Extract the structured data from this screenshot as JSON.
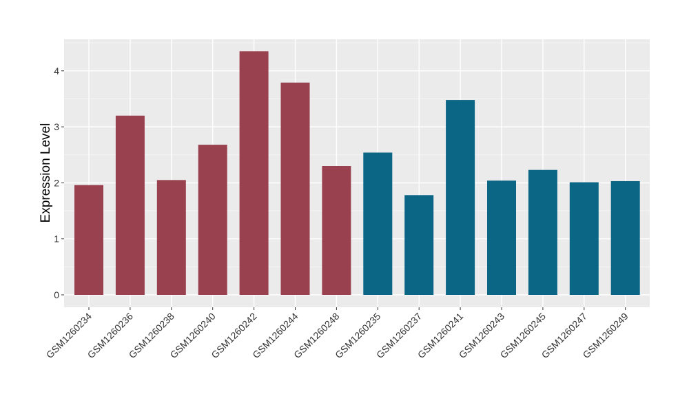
{
  "chart_data": {
    "type": "bar",
    "title": "",
    "xlabel": "",
    "ylabel": "Expression Level",
    "ylim": [
      0,
      4.5
    ],
    "yticks": [
      0,
      1,
      2,
      3,
      4
    ],
    "grid": true,
    "legend": "none",
    "categories": [
      "GSM1260234",
      "GSM1260236",
      "GSM1260238",
      "GSM1260240",
      "GSM1260242",
      "GSM1260244",
      "GSM1260248",
      "GSM1260235",
      "GSM1260237",
      "GSM1260241",
      "GSM1260243",
      "GSM1260245",
      "GSM1260247",
      "GSM1260249"
    ],
    "values": [
      1.96,
      3.2,
      2.05,
      2.68,
      4.35,
      3.79,
      2.3,
      2.54,
      1.78,
      3.48,
      2.04,
      2.23,
      2.01,
      2.03
    ],
    "groups": [
      "A",
      "A",
      "A",
      "A",
      "A",
      "A",
      "A",
      "B",
      "B",
      "B",
      "B",
      "B",
      "B",
      "B"
    ],
    "colors": {
      "A": "#9A4150",
      "B": "#0B6686"
    }
  }
}
